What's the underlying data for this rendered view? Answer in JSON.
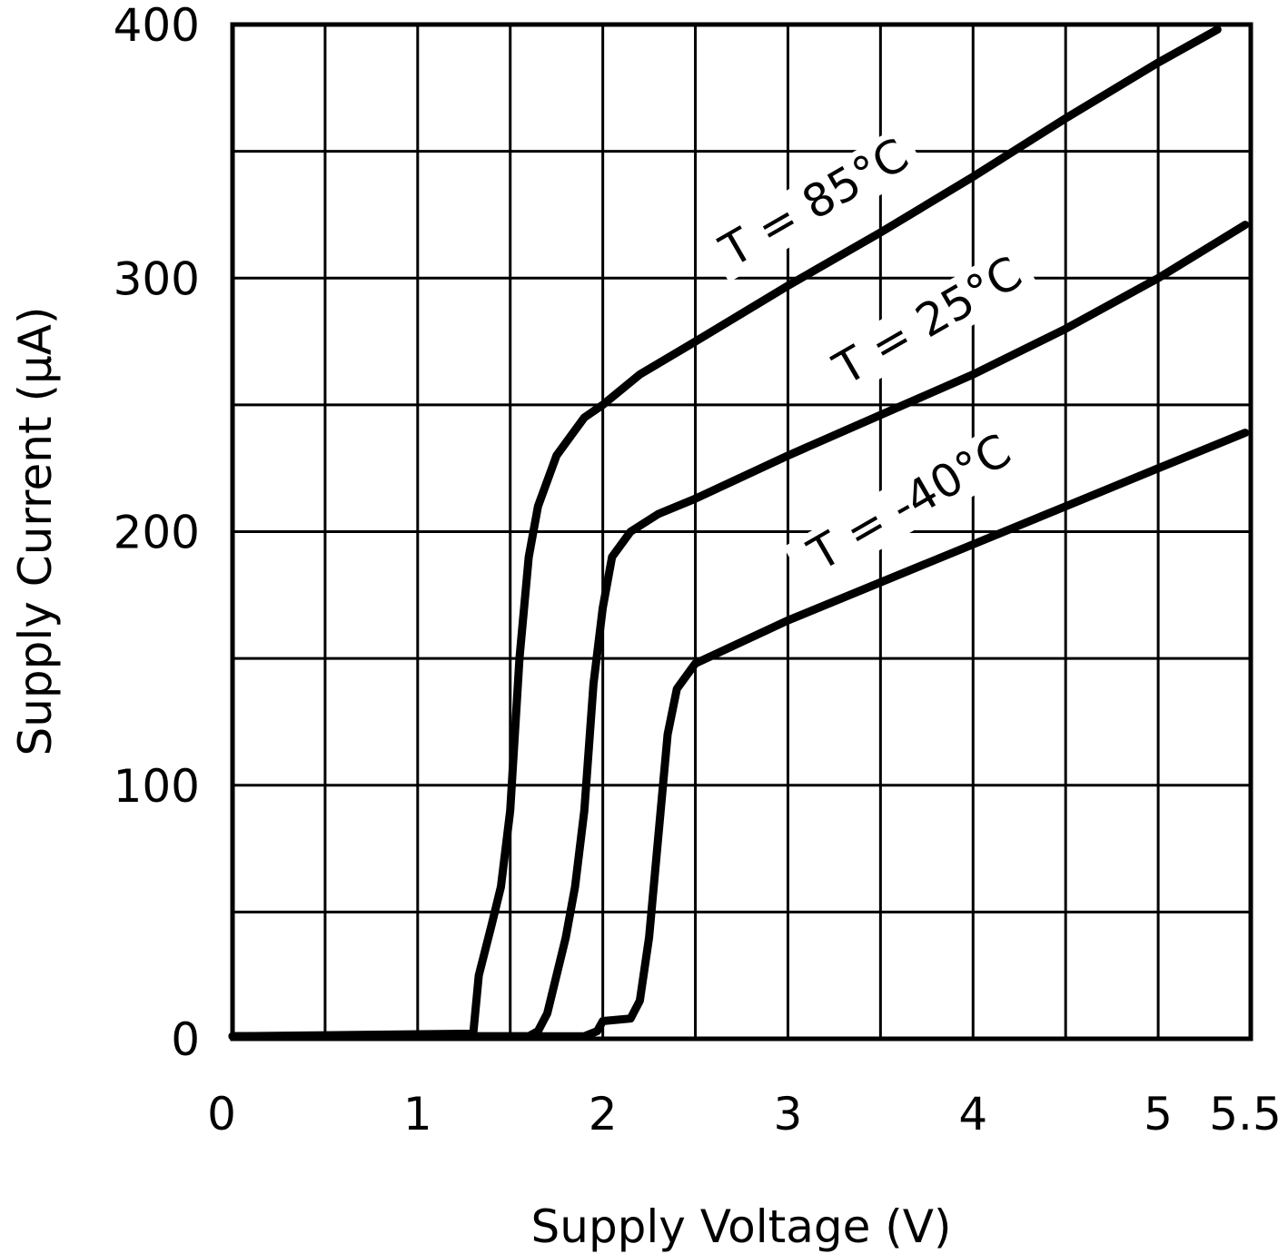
{
  "chart_data": {
    "type": "line",
    "title": "",
    "xlabel": "Supply Voltage (V)",
    "ylabel": "Supply Current (μA)",
    "xlim": [
      0,
      5.5
    ],
    "ylim": [
      0,
      400
    ],
    "x_ticks": [
      0,
      1,
      2,
      3,
      4,
      5,
      5.5
    ],
    "x_tick_labels": [
      "0",
      "1",
      "2",
      "3",
      "4",
      "5",
      "5.5"
    ],
    "y_ticks": [
      0,
      100,
      200,
      300,
      400
    ],
    "y_tick_labels": [
      "0",
      "100",
      "200",
      "300",
      "400"
    ],
    "x_grid_step": 0.5,
    "y_grid_step": 50,
    "grid": true,
    "line_color": "#000000",
    "series": [
      {
        "name": "T = 85°C",
        "points": [
          [
            0,
            1
          ],
          [
            1.3,
            2
          ],
          [
            1.33,
            25
          ],
          [
            1.4,
            45
          ],
          [
            1.45,
            60
          ],
          [
            1.5,
            90
          ],
          [
            1.55,
            150
          ],
          [
            1.6,
            190
          ],
          [
            1.65,
            210
          ],
          [
            1.75,
            230
          ],
          [
            1.9,
            245
          ],
          [
            2,
            250
          ],
          [
            2.2,
            262
          ],
          [
            2.5,
            275
          ],
          [
            3,
            297
          ],
          [
            3.5,
            318
          ],
          [
            4,
            340
          ],
          [
            4.5,
            363
          ],
          [
            5,
            385
          ],
          [
            5.32,
            398
          ]
        ]
      },
      {
        "name": "T = 25°C",
        "points": [
          [
            0,
            1
          ],
          [
            1.6,
            1
          ],
          [
            1.65,
            3
          ],
          [
            1.7,
            10
          ],
          [
            1.8,
            40
          ],
          [
            1.85,
            60
          ],
          [
            1.9,
            90
          ],
          [
            1.95,
            140
          ],
          [
            2,
            170
          ],
          [
            2.05,
            190
          ],
          [
            2.15,
            200
          ],
          [
            2.3,
            207
          ],
          [
            2.5,
            213
          ],
          [
            3,
            230
          ],
          [
            3.5,
            246
          ],
          [
            4,
            262
          ],
          [
            4.5,
            280
          ],
          [
            5,
            300
          ],
          [
            5.47,
            321
          ]
        ]
      },
      {
        "name": "T = -40°C",
        "points": [
          [
            0,
            1
          ],
          [
            1.9,
            1
          ],
          [
            1.97,
            3
          ],
          [
            2,
            7
          ],
          [
            2.15,
            8
          ],
          [
            2.2,
            15
          ],
          [
            2.25,
            40
          ],
          [
            2.3,
            80
          ],
          [
            2.35,
            120
          ],
          [
            2.4,
            138
          ],
          [
            2.5,
            148
          ],
          [
            3,
            165
          ],
          [
            3.5,
            180
          ],
          [
            4,
            195
          ],
          [
            4.5,
            210
          ],
          [
            5,
            225
          ],
          [
            5.47,
            239
          ]
        ]
      }
    ]
  }
}
